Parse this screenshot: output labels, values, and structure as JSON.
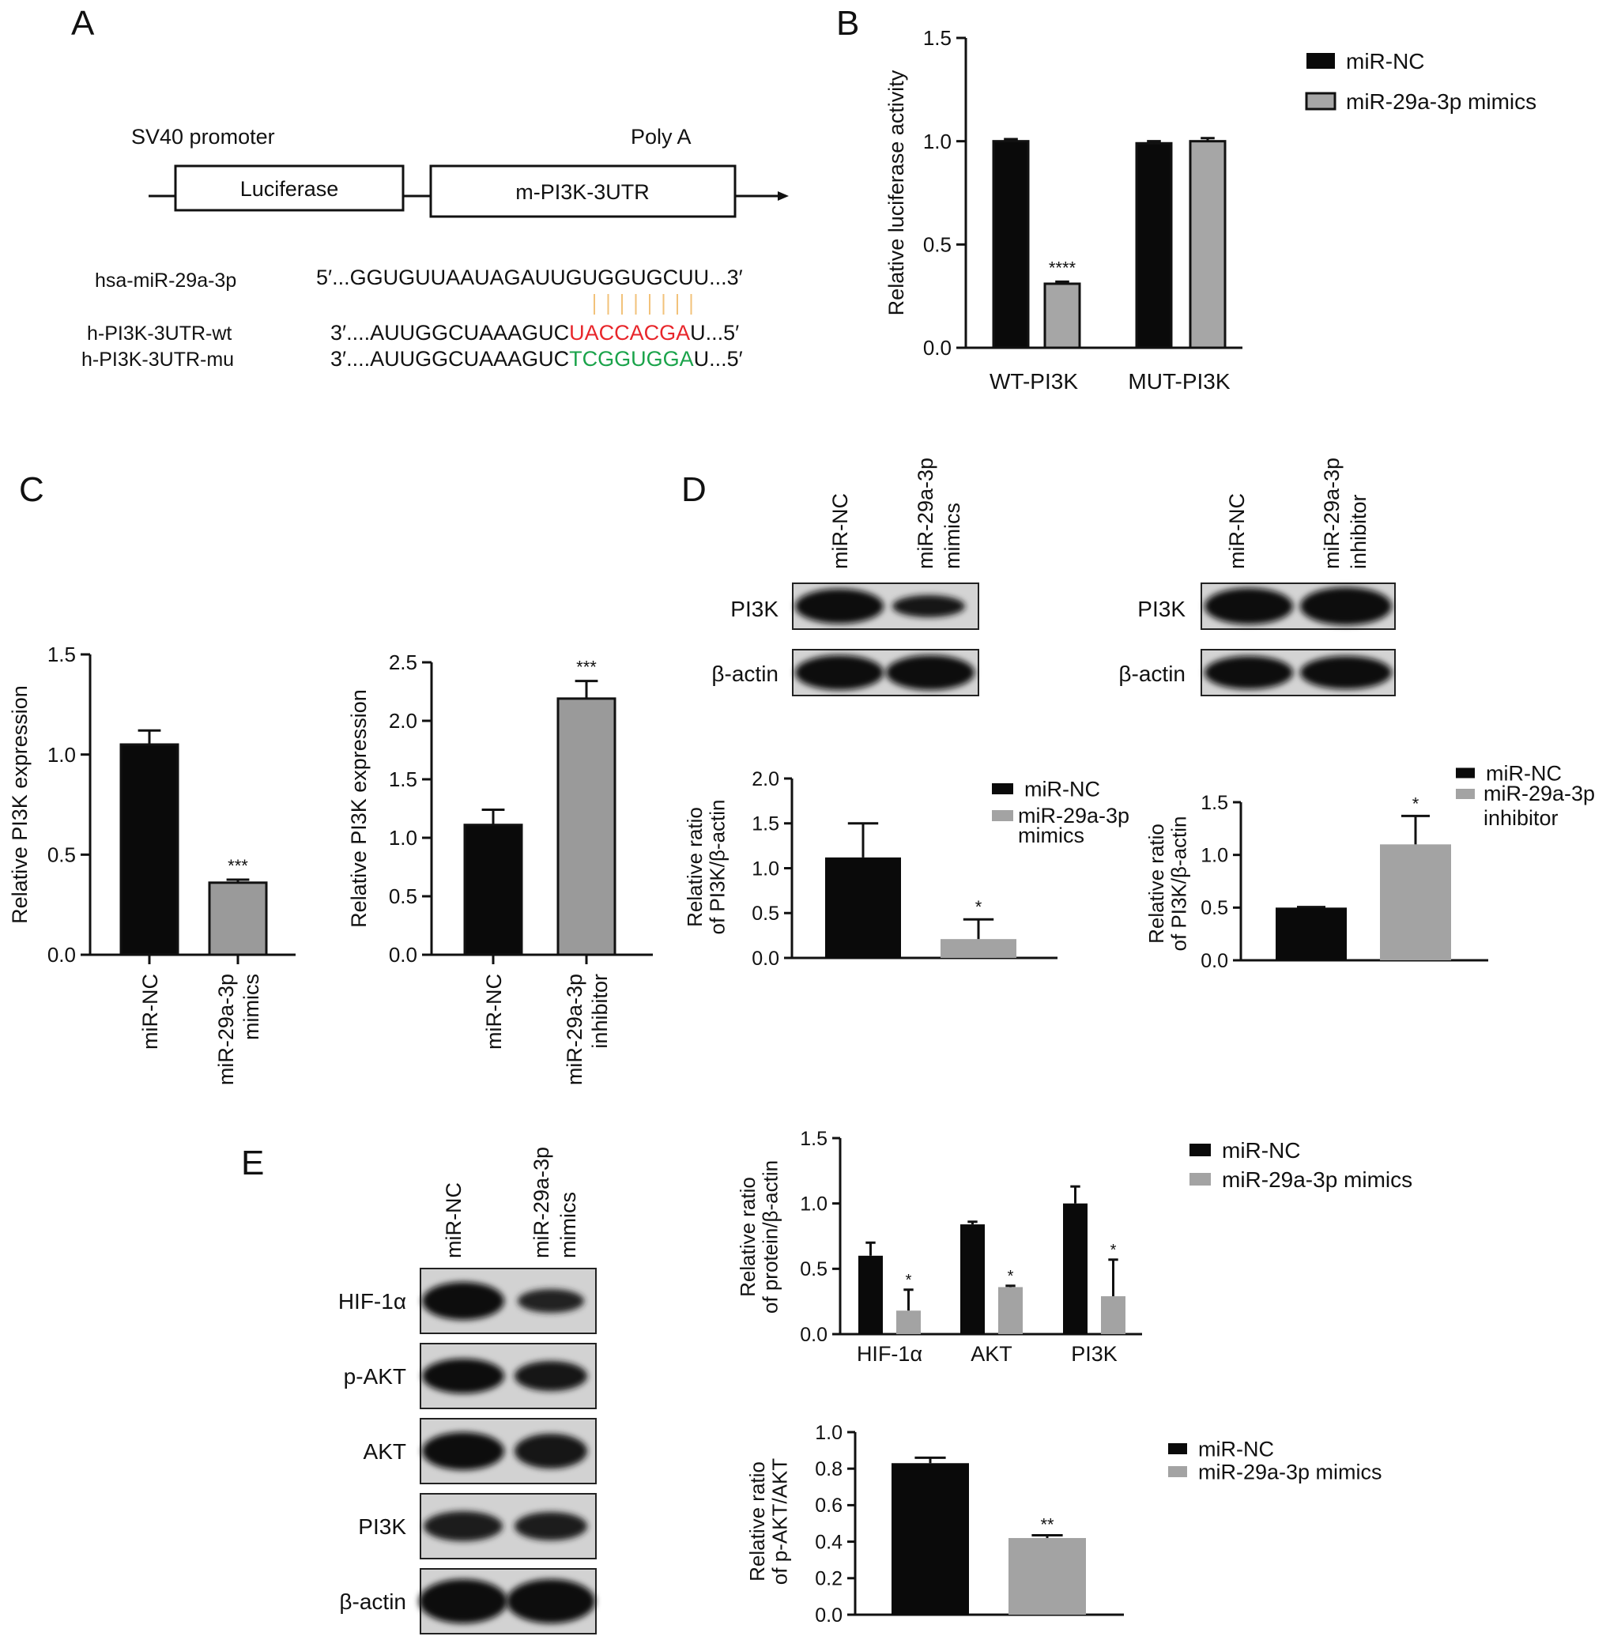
{
  "panels": {
    "A": {
      "letter": "A",
      "promoter_label": "SV40 promoter",
      "polya_label": "Poly A",
      "box1_label": "Luciferase",
      "box2_label": "m-PI3K-3UTR",
      "seq_names": [
        "hsa-miR-29a-3p",
        "h-PI3K-3UTR-wt",
        "h-PI3K-3UTR-mu"
      ],
      "mir_seq": "5′...GGUGUUAAUAGAUUGUGGUGCUU...3′",
      "wt_prefix": "3′....AUUGGCUAAAGUC",
      "wt_site": "UACCACGA",
      "wt_suffix": "U...5′",
      "mu_prefix": "3′....AUUGGCUAAAGUC",
      "mu_site": "TCGGUGGA",
      "mu_suffix": "U...5′",
      "site_colors": {
        "wt": "#e8262b",
        "mu": "#1aa34a",
        "pairing": "#f2c27a"
      }
    },
    "B": {
      "letter": "B"
    },
    "C": {
      "letter": "C"
    },
    "D": {
      "letter": "D",
      "blot1_lanes": [
        "miR-NC",
        "miR-29a-3p",
        "mimics"
      ],
      "blot1_rows": [
        "PI3K",
        "β-actin"
      ],
      "blot2_lanes": [
        "miR-NC",
        "miR-29a-3p",
        "inhibitor"
      ],
      "blot2_rows": [
        "PI3K",
        "β-actin"
      ]
    },
    "E": {
      "letter": "E",
      "blot_lanes": [
        "miR-NC",
        "miR-29a-3p",
        "mimics"
      ],
      "blot_rows": [
        "HIF-1α",
        "p-AKT",
        "AKT",
        "PI3K",
        "β-actin"
      ]
    }
  },
  "colors": {
    "black_bar": "#0a0a0a",
    "gray_bar_B": "#a6a6a6",
    "gray_bar_C": "#9a9a9a",
    "gray_bar_D": "#a3a3a3"
  },
  "chart_data": [
    {
      "id": "B",
      "type": "bar",
      "ylabel": "Relative luciferase activity",
      "categories": [
        "WT-PI3K",
        "MUT-PI3K"
      ],
      "series": [
        {
          "name": "miR-NC",
          "values": [
            1.0,
            0.99
          ],
          "errors": [
            0.01,
            0.01
          ]
        },
        {
          "name": "miR-29a-3p mimics",
          "values": [
            0.31,
            1.0
          ],
          "errors": [
            0.01,
            0.015
          ]
        }
      ],
      "annotations": [
        {
          "category": 0,
          "series": 1,
          "text": "****"
        }
      ],
      "ylim": [
        0,
        1.5
      ],
      "yticks": [
        "0.0",
        "0.5",
        "1.0",
        "1.5"
      ],
      "legend_position": "top-right"
    },
    {
      "id": "C1",
      "type": "bar",
      "ylabel": "Relative PI3K expression",
      "categories": [
        "miR-NC",
        "miR-29a-3p mimics"
      ],
      "values": [
        1.05,
        0.36
      ],
      "errors": [
        0.07,
        0.015
      ],
      "annotations": [
        {
          "index": 1,
          "text": "***"
        }
      ],
      "ylim": [
        0,
        1.5
      ],
      "yticks": [
        "0.0",
        "0.5",
        "1.0",
        "1.5"
      ]
    },
    {
      "id": "C2",
      "type": "bar",
      "ylabel": "Relative PI3K expression",
      "categories": [
        "miR-NC",
        "miR-29a-3p inhibitor"
      ],
      "values": [
        1.11,
        2.19
      ],
      "errors": [
        0.13,
        0.15
      ],
      "annotations": [
        {
          "index": 1,
          "text": "***"
        }
      ],
      "ylim": [
        0,
        2.5
      ],
      "yticks": [
        "0.0",
        "0.5",
        "1.0",
        "1.5",
        "2.0",
        "2.5"
      ]
    },
    {
      "id": "D1",
      "type": "bar",
      "ylabel": "Relative ratio of PI3K/β-actin",
      "legend": [
        "miR-NC",
        "miR-29a-3p mimics"
      ],
      "values": [
        1.12,
        0.21
      ],
      "errors": [
        0.38,
        0.22
      ],
      "annotations": [
        {
          "index": 1,
          "text": "*"
        }
      ],
      "ylim": [
        0,
        2.0
      ],
      "yticks": [
        "0.0",
        "0.5",
        "1.0",
        "1.5",
        "2.0"
      ],
      "legend_position": "top-right"
    },
    {
      "id": "D2",
      "type": "bar",
      "ylabel": "Relative ratio of PI3K/β-actin",
      "legend": [
        "miR-NC",
        "miR-29a-3p inhibitor"
      ],
      "values": [
        0.5,
        1.1
      ],
      "errors": [
        0.005,
        0.27
      ],
      "annotations": [
        {
          "index": 1,
          "text": "*"
        }
      ],
      "ylim": [
        0,
        1.5
      ],
      "yticks": [
        "0.0",
        "0.5",
        "1.0",
        "1.5"
      ],
      "legend_position": "top-right"
    },
    {
      "id": "E1",
      "type": "bar",
      "ylabel": "Relative ratio of protein/β-actin",
      "categories": [
        "HIF-1α",
        "AKT",
        "PI3K"
      ],
      "series": [
        {
          "name": "miR-NC",
          "values": [
            0.6,
            0.84,
            1.0
          ],
          "errors": [
            0.1,
            0.02,
            0.13
          ]
        },
        {
          "name": "miR-29a-3p mimics",
          "values": [
            0.18,
            0.36,
            0.29
          ],
          "errors": [
            0.16,
            0.01,
            0.28
          ]
        }
      ],
      "annotations": [
        {
          "category": 0,
          "series": 1,
          "text": "*"
        },
        {
          "category": 1,
          "series": 1,
          "text": "*"
        },
        {
          "category": 2,
          "series": 1,
          "text": "*"
        }
      ],
      "ylim": [
        0,
        1.5
      ],
      "yticks": [
        "0.0",
        "0.5",
        "1.0",
        "1.5"
      ],
      "legend_position": "top-right"
    },
    {
      "id": "E2",
      "type": "bar",
      "ylabel": "Relative ratio of p-AKT/AKT",
      "legend": [
        "miR-NC",
        "miR-29a-3p mimics"
      ],
      "values": [
        0.83,
        0.42
      ],
      "errors": [
        0.03,
        0.015
      ],
      "annotations": [
        {
          "index": 1,
          "text": "**"
        }
      ],
      "ylim": [
        0,
        1.0
      ],
      "yticks": [
        "0.0",
        "0.2",
        "0.4",
        "0.6",
        "0.8",
        "1.0"
      ],
      "legend_position": "top-right"
    }
  ]
}
